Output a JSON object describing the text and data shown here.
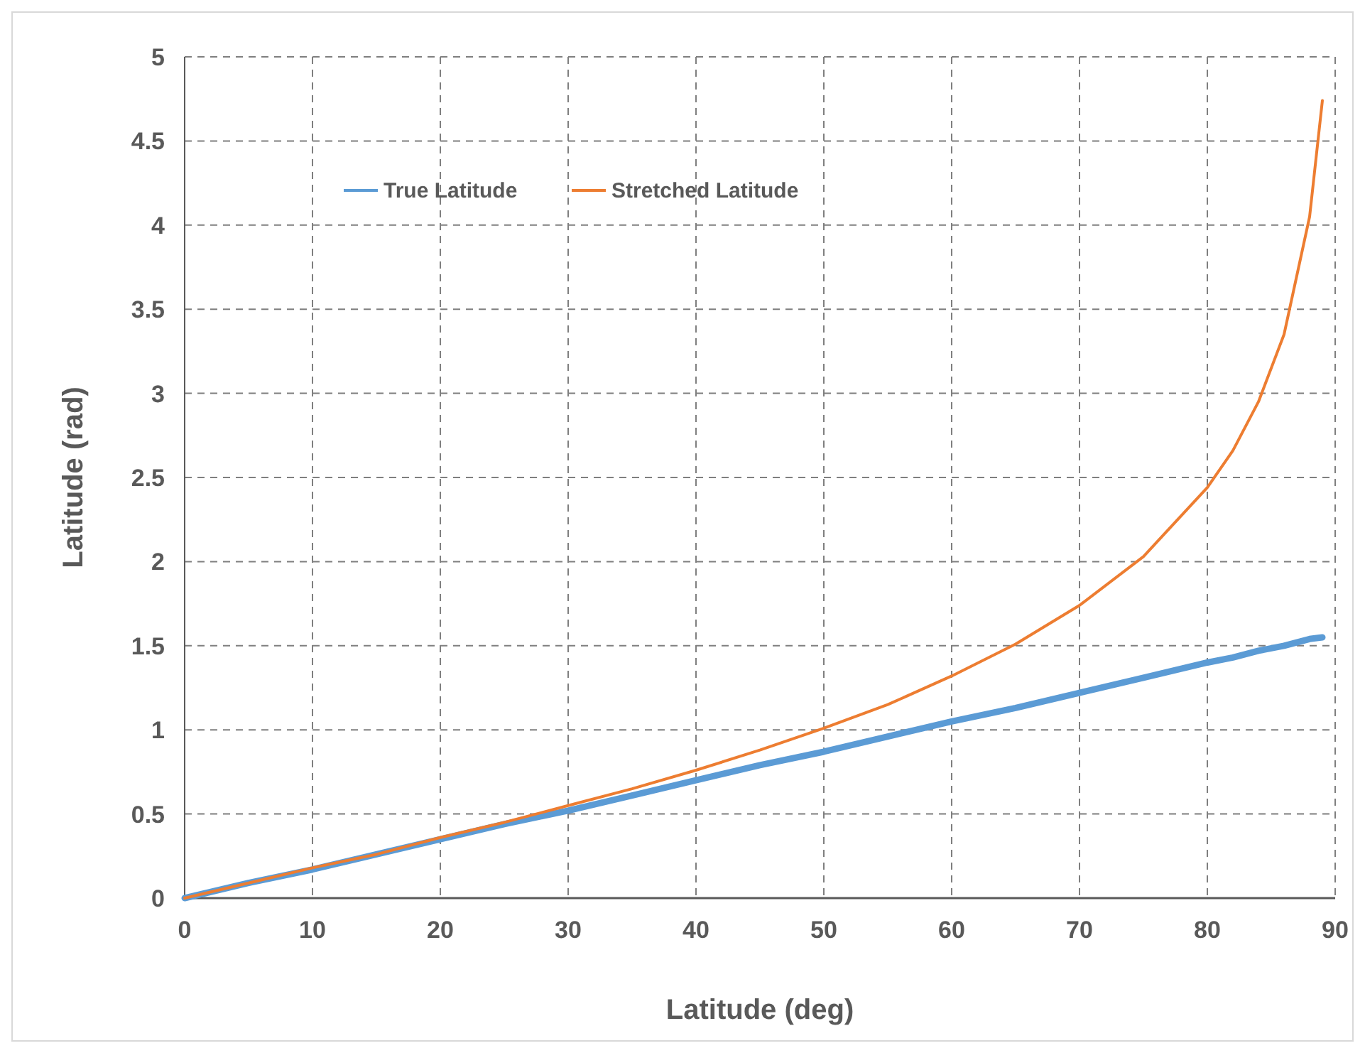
{
  "chart_data": {
    "type": "line",
    "xlabel": "Latitude (deg)",
    "ylabel": "Latitude (rad)",
    "x": [
      0,
      5,
      10,
      15,
      20,
      25,
      30,
      35,
      40,
      45,
      50,
      55,
      60,
      65,
      70,
      75,
      80,
      82,
      84,
      86,
      88,
      89
    ],
    "series": [
      {
        "name": "True Latitude",
        "color": "#5b9bd5",
        "values": [
          0,
          0.09,
          0.17,
          0.26,
          0.35,
          0.44,
          0.52,
          0.61,
          0.7,
          0.79,
          0.87,
          0.96,
          1.05,
          1.13,
          1.22,
          1.31,
          1.4,
          1.43,
          1.47,
          1.5,
          1.54,
          1.55
        ]
      },
      {
        "name": "Stretched Latitude",
        "color": "#ed7d31",
        "values": [
          0,
          0.09,
          0.18,
          0.26,
          0.36,
          0.45,
          0.55,
          0.65,
          0.76,
          0.88,
          1.01,
          1.15,
          1.32,
          1.51,
          1.74,
          2.03,
          2.44,
          2.66,
          2.95,
          3.35,
          4.05,
          4.74
        ]
      }
    ],
    "xlim": [
      0,
      90
    ],
    "xticks": [
      0,
      10,
      20,
      30,
      40,
      50,
      60,
      70,
      80,
      90
    ],
    "ylim": [
      0,
      5
    ],
    "yticks": [
      0,
      {
        "value": 0.5,
        "label": "0.5"
      },
      1,
      {
        "value": 1.5,
        "label": "1.5"
      },
      2,
      {
        "value": 2.5,
        "label": "2.5"
      },
      3,
      {
        "value": 3.5,
        "label": "3.5"
      },
      4,
      {
        "value": 4.5,
        "label": "4.5"
      },
      5
    ],
    "grid": true,
    "legend": "top left",
    "marker": "none",
    "line_style": "solid"
  }
}
